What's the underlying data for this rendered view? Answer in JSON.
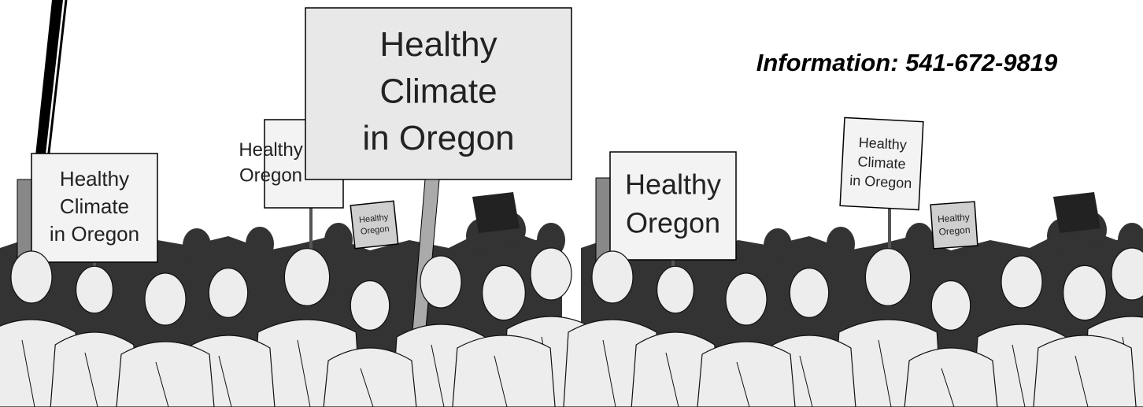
{
  "info": "Information: 541-672-9819",
  "signs": [
    {
      "lines": [
        "Healthy",
        "Climate",
        "in Oregon"
      ]
    },
    {
      "lines": [
        "Healthy",
        "Oregon"
      ]
    },
    {
      "lines": [
        "Healthy",
        "Climate",
        "in Oregon"
      ]
    },
    {
      "lines": [
        "Healthy",
        "Oregon"
      ]
    },
    {
      "lines": [
        "Healthy",
        "Oregon"
      ]
    },
    {
      "lines": [
        "Healthy",
        "Climate",
        "in Oregon"
      ]
    },
    {
      "lines": [
        "Healthy",
        "Oregon"
      ]
    }
  ]
}
